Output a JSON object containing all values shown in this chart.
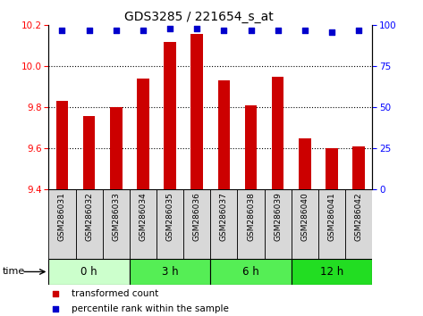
{
  "title": "GDS3285 / 221654_s_at",
  "samples": [
    "GSM286031",
    "GSM286032",
    "GSM286033",
    "GSM286034",
    "GSM286035",
    "GSM286036",
    "GSM286037",
    "GSM286038",
    "GSM286039",
    "GSM286040",
    "GSM286041",
    "GSM286042"
  ],
  "bar_values": [
    9.83,
    9.76,
    9.8,
    9.94,
    10.12,
    10.16,
    9.93,
    9.81,
    9.95,
    9.65,
    9.6,
    9.61
  ],
  "percentile_values": [
    97,
    97,
    97,
    97,
    98,
    98,
    97,
    97,
    97,
    97,
    96,
    97
  ],
  "bar_color": "#cc0000",
  "percentile_color": "#0000cc",
  "ylim_left": [
    9.4,
    10.2
  ],
  "ylim_right": [
    0,
    100
  ],
  "yticks_left": [
    9.4,
    9.6,
    9.8,
    10.0,
    10.2
  ],
  "yticks_right": [
    0,
    25,
    50,
    75,
    100
  ],
  "group_configs": [
    {
      "start": 0,
      "end": 3,
      "label": "0 h",
      "color": "#ccffcc"
    },
    {
      "start": 3,
      "end": 6,
      "label": "3 h",
      "color": "#55ee55"
    },
    {
      "start": 6,
      "end": 9,
      "label": "6 h",
      "color": "#55ee55"
    },
    {
      "start": 9,
      "end": 12,
      "label": "12 h",
      "color": "#22dd22"
    }
  ],
  "time_label": "time",
  "legend_bar_label": "transformed count",
  "legend_pct_label": "percentile rank within the sample",
  "title_fontsize": 10,
  "bar_width": 0.45,
  "label_fontsize": 6.5,
  "tick_fontsize": 7.5,
  "group_fontsize": 8.5,
  "legend_fontsize": 7.5
}
